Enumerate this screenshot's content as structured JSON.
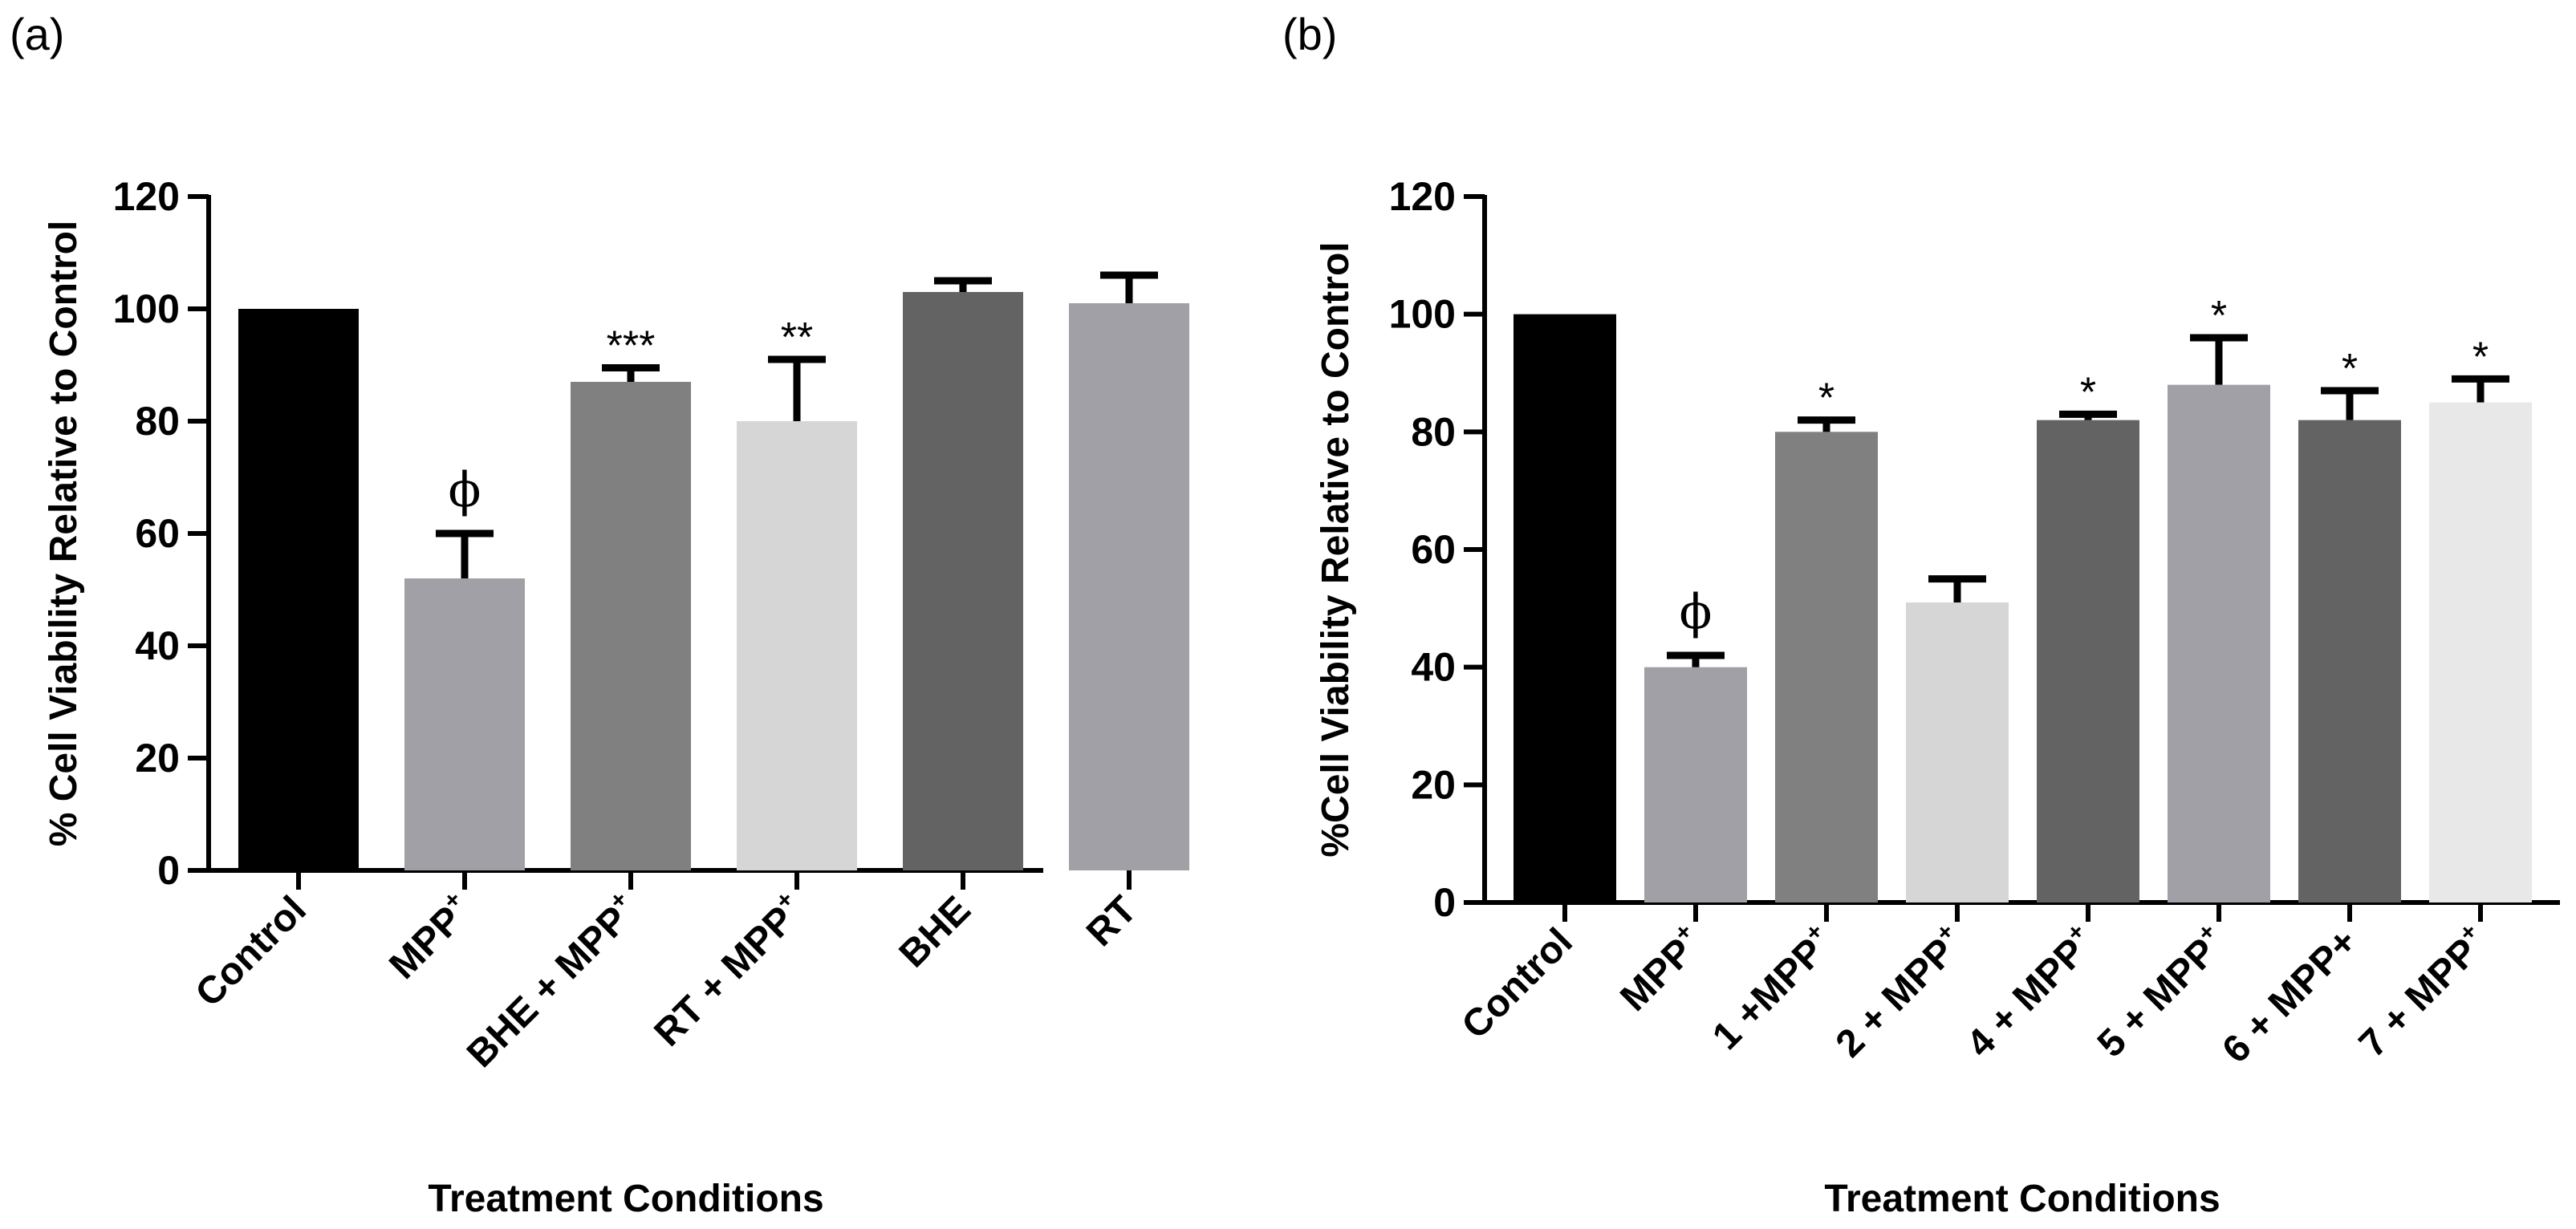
{
  "chart_data": [
    {
      "panel_label": "(a)",
      "type": "bar",
      "ylabel": "% Cell Viability Relative to Control",
      "xlabel": "Treatment Conditions",
      "ylim": [
        0,
        120
      ],
      "yticks": [
        0,
        20,
        40,
        60,
        80,
        100,
        120
      ],
      "categories": [
        {
          "text": "Control",
          "sup": ""
        },
        {
          "text": "MPP",
          "sup": "+"
        },
        {
          "text": "BHE + MPP",
          "sup": "+"
        },
        {
          "text": "RT + MPP",
          "sup": "+"
        },
        {
          "text": "BHE",
          "sup": ""
        },
        {
          "text": "RT",
          "sup": ""
        }
      ],
      "values": [
        100,
        52,
        87,
        80,
        103,
        101
      ],
      "errors": [
        0,
        8,
        2.5,
        11,
        2,
        5
      ],
      "annotations": [
        "",
        "ϕ",
        "***",
        "**",
        "",
        ""
      ],
      "colors": [
        "#000000",
        "#a0a0a6",
        "#808080",
        "#d6d6d6",
        "#636363",
        "#a0a0a6"
      ]
    },
    {
      "panel_label": "(b)",
      "type": "bar",
      "ylabel": "%Cell Viability Relative to Control",
      "xlabel": "Treatment Conditions",
      "ylim": [
        0,
        120
      ],
      "yticks": [
        0,
        20,
        40,
        60,
        80,
        100,
        120
      ],
      "categories": [
        {
          "text": "Control",
          "sup": ""
        },
        {
          "text": "MPP",
          "sup": "+"
        },
        {
          "text": "1 +MPP",
          "sup": "+"
        },
        {
          "text": "2 + MPP",
          "sup": "+"
        },
        {
          "text": "4 + MPP",
          "sup": "+"
        },
        {
          "text": "5 + MPP",
          "sup": "+"
        },
        {
          "text": "6 + MPP+",
          "sup": ""
        },
        {
          "text": "7 + MPP",
          "sup": "+"
        }
      ],
      "values": [
        100,
        40,
        80,
        51,
        82,
        88,
        82,
        85
      ],
      "errors": [
        0,
        2,
        2,
        4,
        1,
        8,
        5,
        4
      ],
      "annotations": [
        "",
        "ϕ",
        "*",
        "",
        "*",
        "*",
        "*",
        "*"
      ],
      "colors": [
        "#000000",
        "#a0a0a6",
        "#808080",
        "#d6d6d6",
        "#636363",
        "#a0a0a6",
        "#636363",
        "#e8e8e8"
      ]
    }
  ]
}
